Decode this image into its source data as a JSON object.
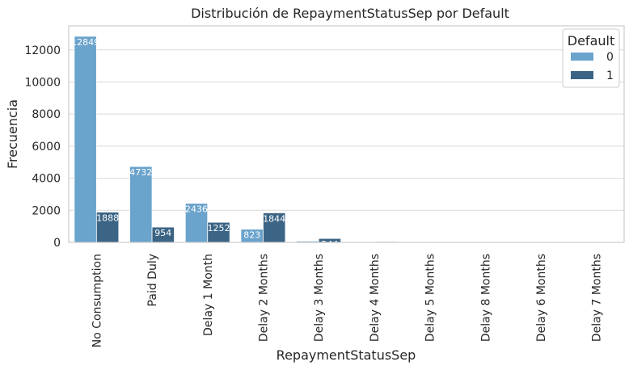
{
  "chart_data": {
    "type": "bar",
    "title": "Distribución de RepaymentStatusSep por Default",
    "xlabel": "RepaymentStatusSep",
    "ylabel": "Frecuencia",
    "categories": [
      "No Consumption",
      "Paid Duly",
      "Delay 1 Month",
      "Delay 2 Months",
      "Delay 3 Months",
      "Delay 4 Months",
      "Delay 5 Months",
      "Delay 8 Months",
      "Delay 6 Months",
      "Delay 7 Months"
    ],
    "series": [
      {
        "name": "0",
        "color": "#6aa3cc",
        "values": [
          12849,
          4732,
          2436,
          823,
          78,
          24,
          13,
          11,
          5,
          2
        ],
        "labels": [
          "12849",
          "4732",
          "2436",
          "823",
          "",
          "",
          "",
          "",
          "",
          ""
        ]
      },
      {
        "name": "1",
        "color": "#3b6485",
        "values": [
          1888,
          954,
          1252,
          1844,
          244,
          52,
          13,
          8,
          6,
          7
        ],
        "labels": [
          "1888",
          "954",
          "1252",
          "1844",
          "244",
          "",
          "",
          "",
          "",
          ""
        ]
      }
    ],
    "yticks": [
      0,
      2000,
      4000,
      6000,
      8000,
      10000,
      12000
    ],
    "ylim": [
      0,
      13500
    ],
    "grid": true,
    "legend": {
      "title": "Default",
      "placement": "top-right"
    }
  }
}
